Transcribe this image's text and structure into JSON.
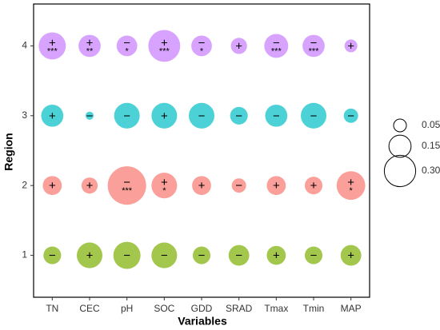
{
  "chart_data": {
    "type": "bubble",
    "x_label": "Variables",
    "y_label": "Region",
    "categories": [
      "TN",
      "CEC",
      "pH",
      "SOC",
      "GDD",
      "SRAD",
      "Tmax",
      "Tmin",
      "MAP"
    ],
    "ylim": [
      0.4,
      4.6
    ],
    "yticks": [
      1,
      2,
      3,
      4
    ],
    "series": [
      {
        "region": 4,
        "color": "#c77cff",
        "values": [
          0.225,
          0.15,
          0.13,
          0.31,
          0.13,
          0.08,
          0.175,
          0.15,
          0.05
        ],
        "signs": [
          "+",
          "+",
          "−",
          "+",
          "−",
          "+",
          "−",
          "−",
          "+"
        ],
        "stars": [
          "***",
          "**",
          "*",
          "***",
          "*",
          null,
          "***",
          "***",
          null
        ]
      },
      {
        "region": 3,
        "color": "#00bfc4",
        "values": [
          0.15,
          0.02,
          0.2,
          0.2,
          0.2,
          0.095,
          0.15,
          0.2,
          0.063
        ],
        "signs": [
          "+",
          "−",
          "−",
          "+",
          "−",
          "−",
          "−",
          "−",
          "−"
        ],
        "stars": [
          null,
          null,
          null,
          null,
          null,
          null,
          null,
          null,
          null
        ]
      },
      {
        "region": 2,
        "color": "#f8766d",
        "values": [
          0.11,
          0.08,
          0.45,
          0.2,
          0.11,
          0.063,
          0.11,
          0.095,
          0.25
        ],
        "signs": [
          "+",
          "+",
          "−",
          "+",
          "+",
          "−",
          "+",
          "+",
          "+"
        ],
        "stars": [
          null,
          null,
          "***",
          "*",
          null,
          null,
          null,
          null,
          "*"
        ]
      },
      {
        "region": 1,
        "color": "#7cae00",
        "values": [
          0.095,
          0.2,
          0.225,
          0.2,
          0.095,
          0.13,
          0.11,
          0.095,
          0.13
        ],
        "signs": [
          "−",
          "+",
          "−",
          "−",
          "−",
          "−",
          "+",
          "−",
          "+"
        ],
        "stars": [
          null,
          null,
          null,
          null,
          null,
          null,
          null,
          null,
          null
        ]
      }
    ],
    "legend_sizes": [
      0.05,
      0.15,
      {
        "value": 0.3,
        "label": "0.30"
      }
    ]
  }
}
